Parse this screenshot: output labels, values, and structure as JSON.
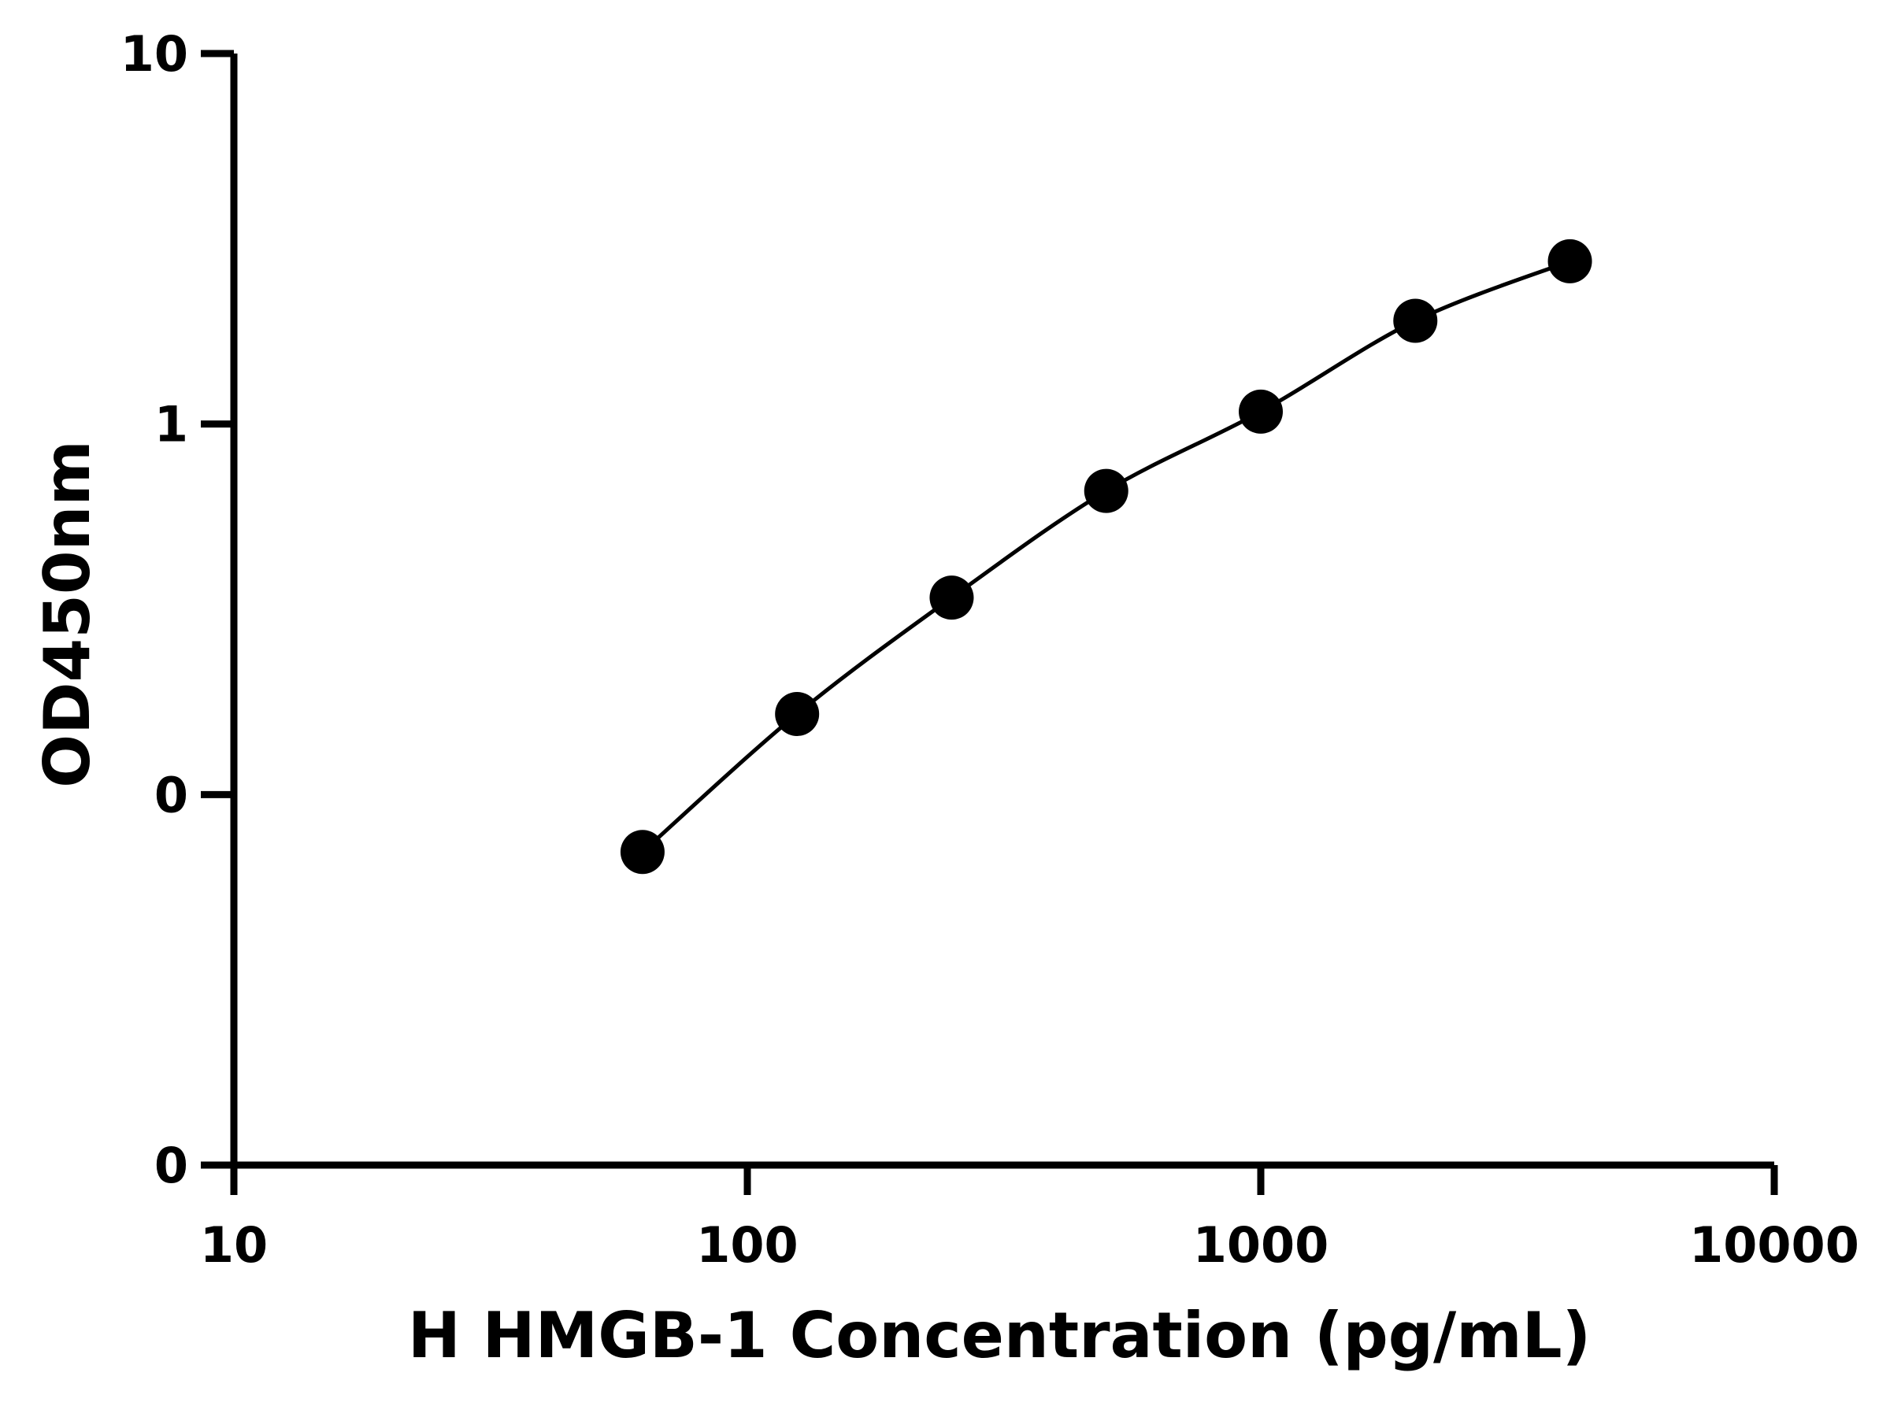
{
  "chart_data": {
    "type": "scatter",
    "title": "",
    "xlabel": "H HMGB-1 Concentration (pg/mL)",
    "ylabel": "OD450nm",
    "x_scale": "log10",
    "xlim": [
      10,
      10000
    ],
    "ylim": [
      0.01,
      10
    ],
    "x_tick_values": [
      10,
      100,
      1000,
      10000
    ],
    "x_tick_labels": [
      "10",
      "100",
      "1000",
      "10000"
    ],
    "y_tick_values": [
      0.01,
      0.1,
      1,
      10
    ],
    "y_tick_labels": [
      "0",
      "0",
      "1",
      "10"
    ],
    "grid": false,
    "series": [
      {
        "points": [
          {
            "x": 62.5,
            "y": 0.07
          },
          {
            "x": 125,
            "y": 0.165
          },
          {
            "x": 250,
            "y": 0.34
          },
          {
            "x": 500,
            "y": 0.66
          },
          {
            "x": 1000,
            "y": 1.08
          },
          {
            "x": 2000,
            "y": 1.9
          },
          {
            "x": 4000,
            "y": 2.75
          }
        ],
        "fit_curve": true
      }
    ],
    "colors": {
      "axis": "#000000",
      "marker": "#000000",
      "curve": "#000000"
    }
  }
}
